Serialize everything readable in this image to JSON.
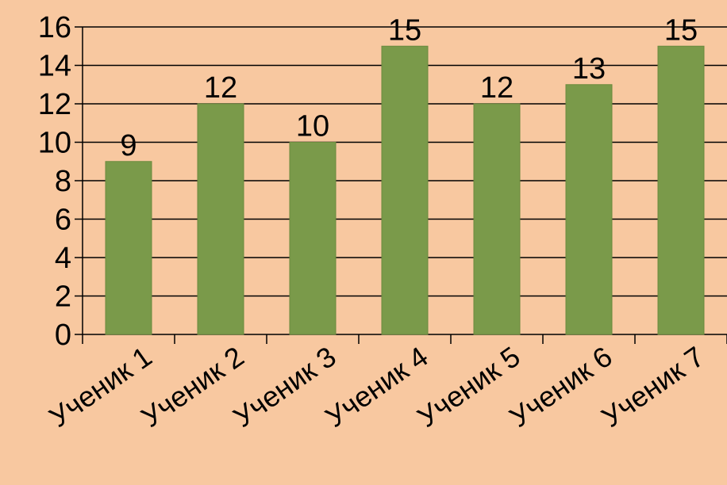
{
  "chart_data": {
    "type": "bar",
    "categories": [
      "Ученик 1",
      "Ученик 2",
      "Ученик 3",
      "Ученик 4",
      "Ученик 5",
      "Ученик 6",
      "Ученик 7"
    ],
    "values": [
      9,
      12,
      10,
      15,
      12,
      13,
      15
    ],
    "ylim": [
      0,
      16
    ],
    "yticks": [
      0,
      2,
      4,
      6,
      8,
      10,
      12,
      14,
      16
    ],
    "grid": true,
    "data_labels": true,
    "colors": {
      "background": "#f8c8a0",
      "bar": "#7a9a4a",
      "bar_edge": "#6b8a3e",
      "axis": "#000000",
      "grid": "#000000"
    }
  }
}
